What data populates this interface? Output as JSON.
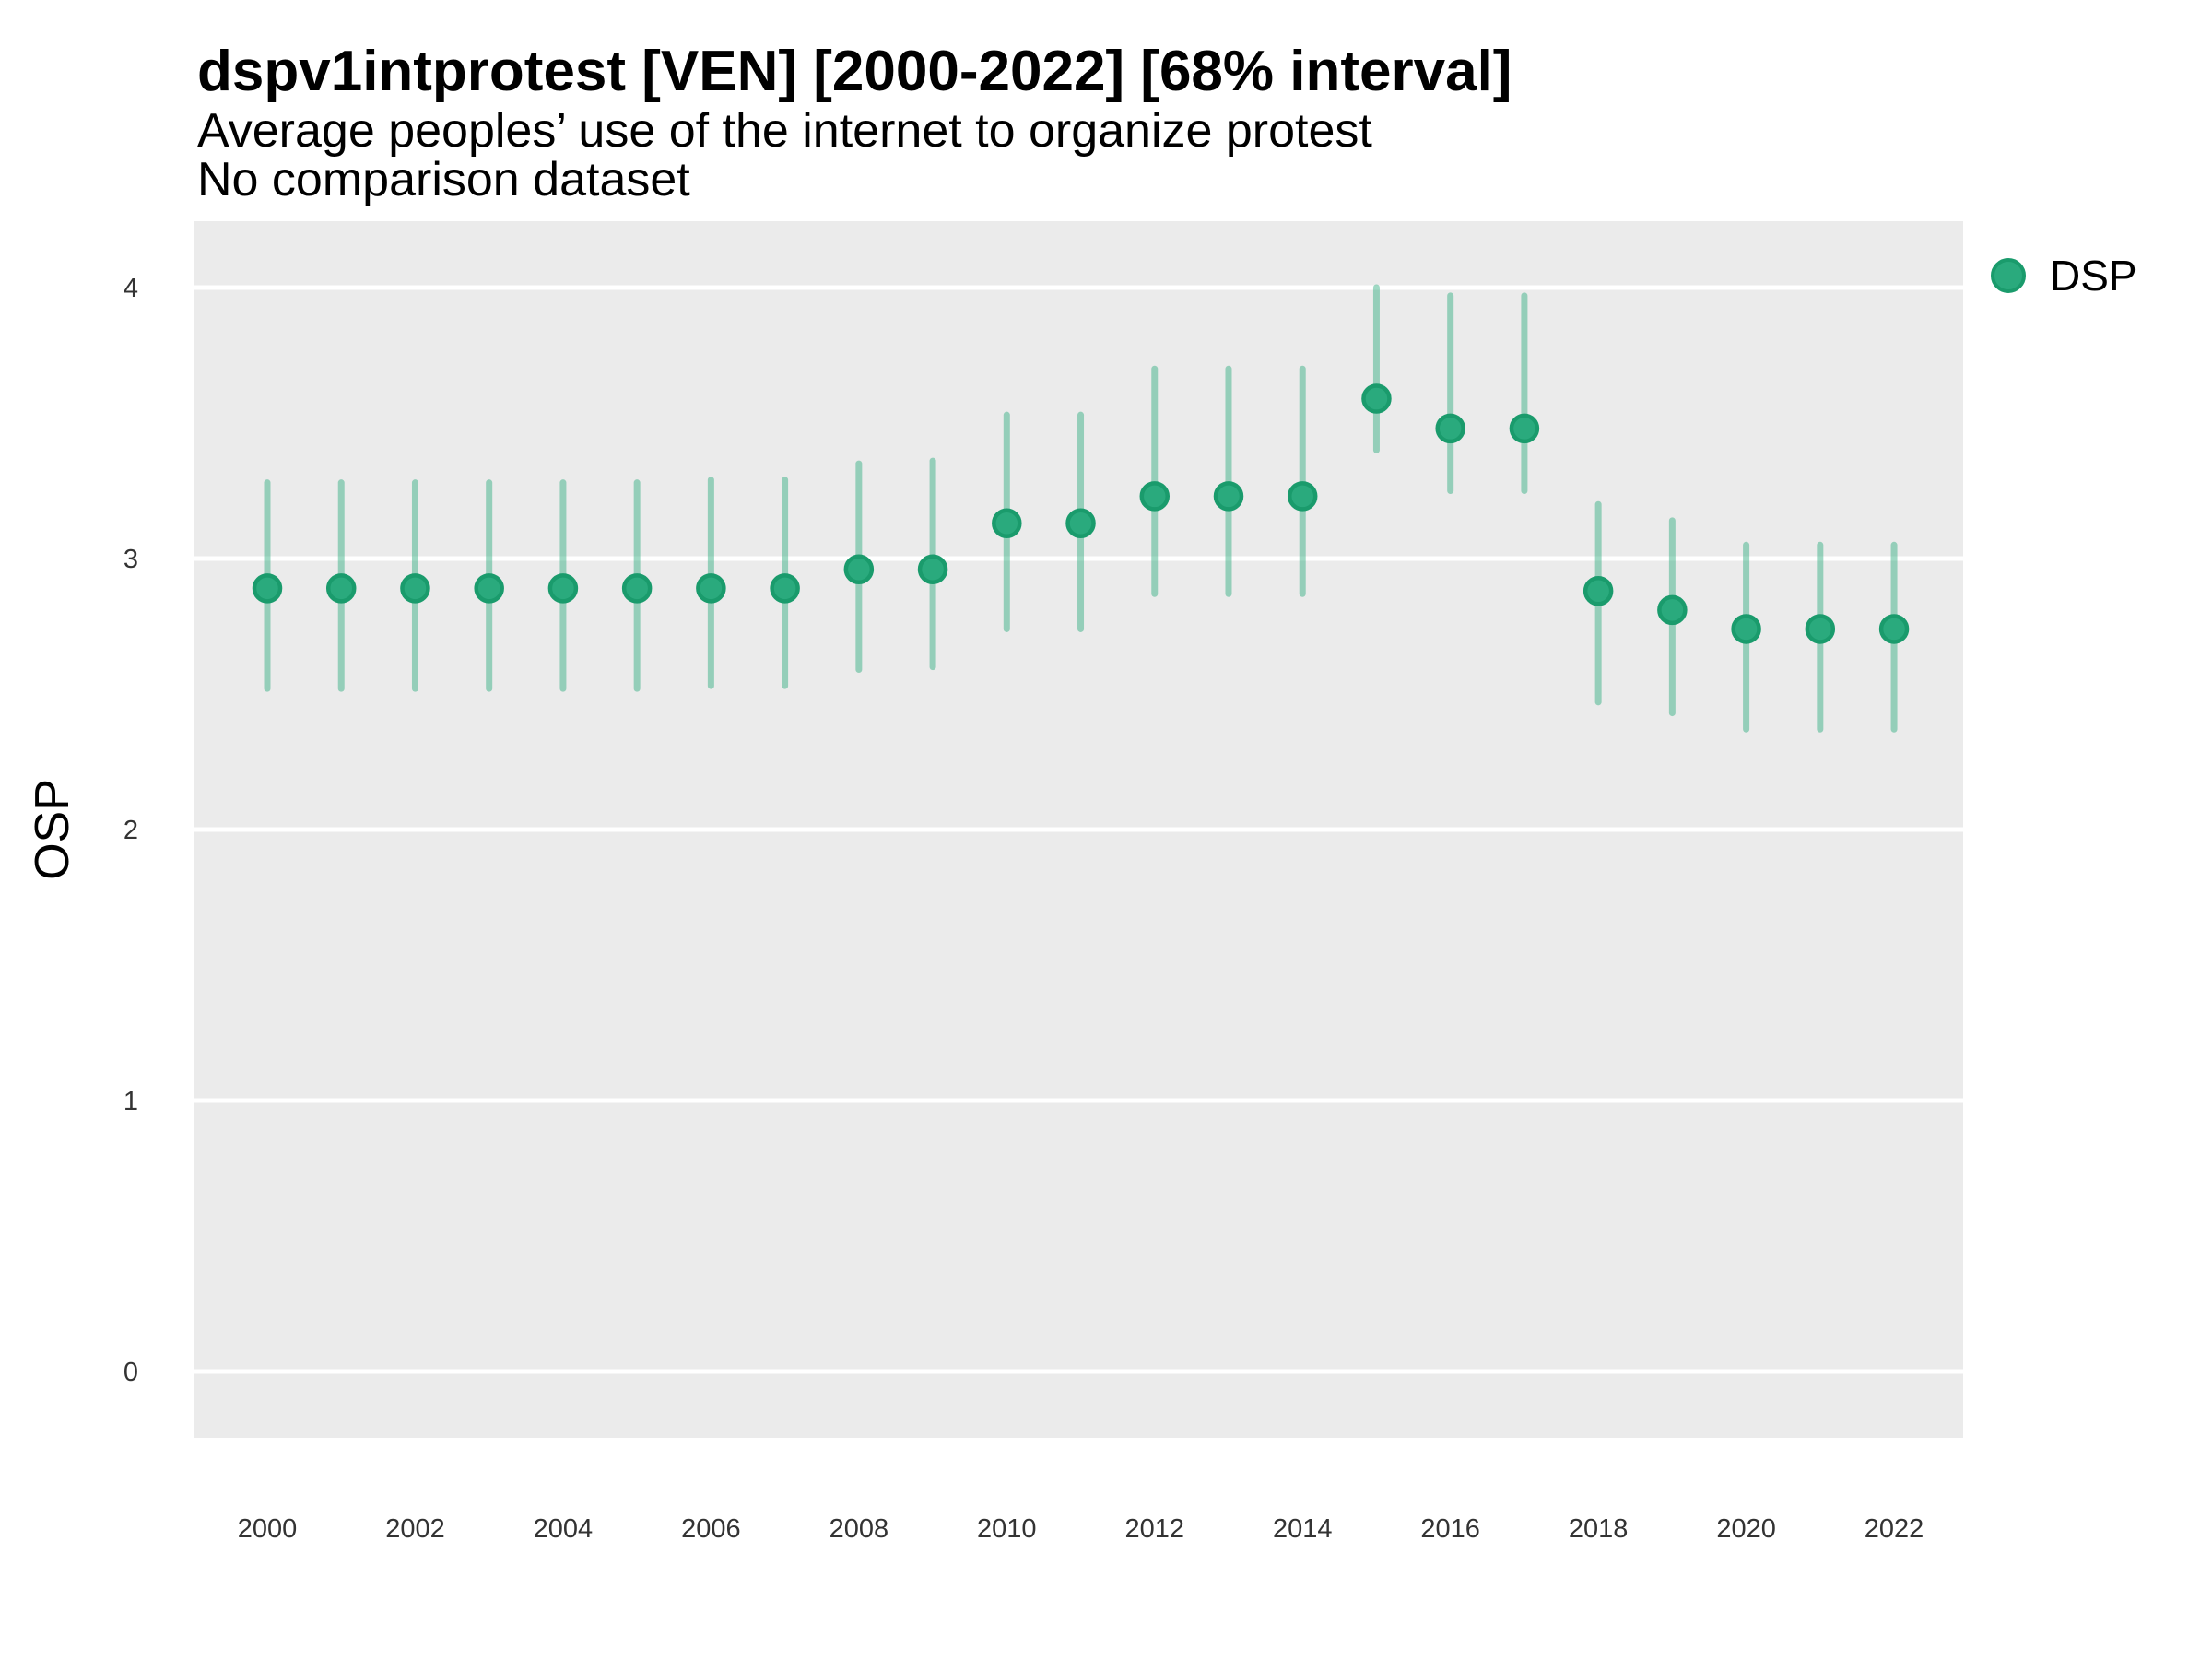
{
  "header": {
    "title": "dspv1intprotest [VEN] [2000-2022] [68% interval]",
    "subtitle_line1": "Average peoples’ use of the internet to organize protest",
    "subtitle_line2": "No comparison dataset"
  },
  "axes": {
    "y_label": "OSP"
  },
  "legend": {
    "label": "DSP"
  },
  "colors": {
    "point_fill": "#2AAA7D",
    "point_stroke": "#1A9B6C",
    "interval_bar": "rgba(42,170,125,0.45)",
    "panel_background": "#EBEBEB",
    "gridline": "#FFFFFF",
    "tick_text": "#333333"
  },
  "chart_data": {
    "type": "scatter",
    "title": "dspv1intprotest [VEN] [2000-2022] [68% interval]",
    "subtitle": "Average peoples’ use of the internet to organize protest",
    "note": "No comparison dataset",
    "xlabel": "",
    "ylabel": "OSP",
    "legend_position": "right",
    "grid": "major-horizontal-only",
    "ylim": [
      -0.25,
      4.25
    ],
    "xlim": [
      1999,
      2023
    ],
    "y_ticks": [
      0,
      1,
      2,
      3,
      4
    ],
    "x_ticks": [
      2000,
      2002,
      2004,
      2006,
      2008,
      2010,
      2012,
      2014,
      2016,
      2018,
      2020,
      2022
    ],
    "interval_level": "68%",
    "series": [
      {
        "name": "DSP",
        "x": [
          2000,
          2001,
          2002,
          2003,
          2004,
          2005,
          2006,
          2007,
          2008,
          2009,
          2010,
          2011,
          2012,
          2013,
          2014,
          2015,
          2016,
          2017,
          2018,
          2019,
          2020,
          2021,
          2022
        ],
        "mean": [
          2.89,
          2.89,
          2.89,
          2.89,
          2.89,
          2.89,
          2.89,
          2.89,
          2.96,
          2.96,
          3.13,
          3.13,
          3.23,
          3.23,
          3.23,
          3.59,
          3.48,
          3.48,
          2.88,
          2.81,
          2.74,
          2.74,
          2.74
        ],
        "lower": [
          2.52,
          2.52,
          2.52,
          2.52,
          2.52,
          2.52,
          2.53,
          2.53,
          2.59,
          2.6,
          2.74,
          2.74,
          2.87,
          2.87,
          2.87,
          3.4,
          3.25,
          3.25,
          2.47,
          2.43,
          2.37,
          2.37,
          2.37
        ],
        "upper": [
          3.28,
          3.28,
          3.28,
          3.28,
          3.28,
          3.28,
          3.29,
          3.29,
          3.35,
          3.36,
          3.53,
          3.53,
          3.7,
          3.7,
          3.7,
          4.0,
          3.97,
          3.97,
          3.2,
          3.14,
          3.05,
          3.05,
          3.05
        ]
      }
    ]
  }
}
